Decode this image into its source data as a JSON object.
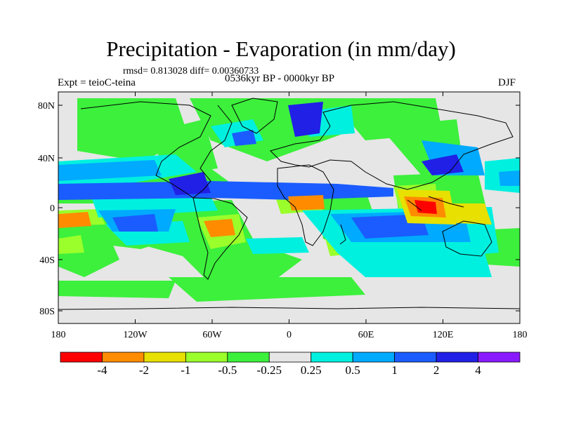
{
  "title": "Precipitation - Evaporation (in mm/day)",
  "stats": "rmsd= 0.813028 diff= 0.00360733",
  "experiment": "Expt = teioC-teina",
  "period": "0536kyr BP - 0000kyr BP",
  "season": "DJF",
  "lat_ticks": [
    "80N",
    "40N",
    "0",
    "40S",
    "80S"
  ],
  "lon_ticks": [
    "180",
    "120W",
    "60W",
    "0",
    "60E",
    "120E",
    "180"
  ],
  "colorbar": {
    "labels": [
      "-4",
      "-2",
      "-1",
      "-0.5",
      "-0.25",
      "0.25",
      "0.5",
      "1",
      "2",
      "4"
    ],
    "colors": [
      "#ff0000",
      "#ff8c00",
      "#e8e000",
      "#9aff2a",
      "#3cf03c",
      "#e6e6e6",
      "#00f0e0",
      "#00aaff",
      "#1a5cff",
      "#2020e6",
      "#8a1aff"
    ]
  }
}
